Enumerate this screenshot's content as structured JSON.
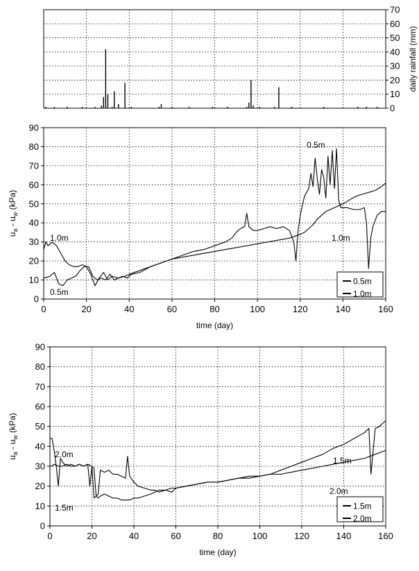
{
  "chart_data": [
    {
      "type": "bar",
      "ylabel": "daily rainfall (mm)",
      "xlim": [
        0,
        160
      ],
      "ylim": [
        0,
        70
      ],
      "yticks": [
        0,
        10,
        20,
        30,
        40,
        50,
        60,
        70
      ],
      "x_gridlines": [
        0,
        20,
        40,
        60,
        80,
        100,
        120,
        140,
        160
      ],
      "y_axis_side": "right",
      "grid": true,
      "x": [
        1,
        5,
        11,
        18,
        24,
        27,
        28,
        29,
        30,
        32,
        33,
        35,
        38,
        41,
        54,
        55,
        60,
        68,
        79,
        86,
        95,
        96,
        97,
        98,
        101,
        108,
        110,
        116,
        131,
        147,
        151,
        156
      ],
      "values": [
        1,
        1,
        1,
        1,
        1,
        2,
        8,
        42,
        10,
        1,
        12,
        3,
        18,
        1,
        1,
        3,
        1,
        1,
        1,
        1,
        1,
        4,
        20,
        2,
        1,
        1,
        15,
        1,
        1,
        1,
        1,
        1
      ]
    },
    {
      "type": "line",
      "xlabel": "time (day)",
      "ylabel": "u_a - u_w (kPa)",
      "ylabel_main": "u",
      "ylabel_sub1": "a",
      "ylabel_mid": " - u",
      "ylabel_sub2": "w",
      "ylabel_unit": " (kPa)",
      "xlim": [
        0,
        160
      ],
      "ylim": [
        0,
        90
      ],
      "xticks": [
        0,
        20,
        40,
        60,
        80,
        100,
        120,
        140,
        160
      ],
      "yticks": [
        0,
        10,
        20,
        30,
        40,
        50,
        60,
        70,
        80,
        90
      ],
      "grid": true,
      "legend_position": "bottom-right",
      "series": [
        {
          "name": "0.5m",
          "x": [
            0,
            3,
            5,
            7,
            9,
            11,
            13,
            15,
            17,
            19,
            21,
            23,
            25,
            27,
            29,
            31,
            33,
            35,
            37,
            39,
            41,
            45,
            50,
            55,
            60,
            65,
            70,
            75,
            80,
            85,
            88,
            90,
            92,
            94,
            95,
            96,
            98,
            100,
            103,
            106,
            109,
            112,
            115,
            117,
            118,
            119,
            120,
            122,
            124,
            125,
            126,
            127,
            128,
            129,
            130,
            131,
            132,
            133,
            134,
            135,
            136,
            137,
            138,
            139,
            140,
            142,
            145,
            148,
            150,
            151,
            152,
            153,
            154,
            156,
            158,
            160
          ],
          "y": [
            11,
            12,
            14,
            8,
            7,
            10,
            11,
            12,
            15,
            17,
            17,
            12,
            10,
            11,
            10,
            13,
            10,
            11,
            12,
            11,
            13,
            14,
            17,
            19,
            21,
            23,
            25,
            26,
            28,
            30,
            32,
            35,
            37,
            38,
            45,
            38,
            36,
            36,
            37,
            38,
            37,
            38,
            36,
            30,
            20,
            36,
            44,
            54,
            58,
            66,
            59,
            74,
            63,
            55,
            68,
            64,
            53,
            75,
            60,
            78,
            58,
            79,
            52,
            48,
            48,
            48,
            47,
            47,
            48,
            40,
            16,
            32,
            38,
            44,
            46,
            46
          ],
          "label": "0.5m"
        },
        {
          "name": "1.0m",
          "x": [
            0,
            1,
            2,
            4,
            6,
            8,
            10,
            12,
            14,
            16,
            18,
            20,
            22,
            24,
            26,
            28,
            30,
            32,
            35,
            38,
            40,
            45,
            50,
            55,
            60,
            65,
            70,
            75,
            80,
            85,
            90,
            95,
            100,
            105,
            110,
            115,
            120,
            122,
            124,
            126,
            128,
            130,
            132,
            134,
            136,
            138,
            140,
            143,
            146,
            149,
            152,
            155,
            158,
            160
          ],
          "y": [
            26,
            30,
            28,
            30,
            28,
            24,
            20,
            18,
            17,
            17,
            18,
            17,
            13,
            7,
            11,
            14,
            10,
            12,
            11,
            12,
            13,
            15,
            17,
            19,
            21,
            22,
            23,
            24,
            25,
            26,
            27,
            28,
            29,
            30,
            31,
            32,
            34,
            35,
            37,
            39,
            42,
            44,
            46,
            47,
            48,
            49,
            50,
            52,
            54,
            55,
            56,
            57,
            59,
            61
          ],
          "label": "1.0m"
        }
      ],
      "annotations": [
        "1.0m",
        "0.5m",
        "0.5m",
        "1.0m"
      ]
    },
    {
      "type": "line",
      "xlabel": "time (day)",
      "ylabel": "u_a - u_w (kPa)",
      "ylabel_main": "u",
      "ylabel_sub1": "a",
      "ylabel_mid": " - u",
      "ylabel_sub2": "w",
      "ylabel_unit": " (kPa)",
      "xlim": [
        0,
        160
      ],
      "ylim": [
        0,
        90
      ],
      "xticks": [
        0,
        20,
        40,
        60,
        80,
        100,
        120,
        140,
        160
      ],
      "yticks": [
        0,
        10,
        20,
        30,
        40,
        50,
        60,
        70,
        80,
        90
      ],
      "grid": true,
      "legend_position": "bottom-right",
      "series": [
        {
          "name": "1.5m",
          "x": [
            0,
            1,
            2,
            4,
            6,
            8,
            10,
            12,
            14,
            16,
            18,
            19,
            20,
            21,
            22,
            23,
            24,
            26,
            28,
            30,
            32,
            34,
            36,
            37,
            38,
            40,
            42,
            45,
            48,
            50,
            52,
            55,
            58,
            60,
            65,
            70,
            75,
            80,
            85,
            90,
            95,
            100,
            105,
            110,
            115,
            120,
            125,
            130,
            135,
            140,
            145,
            150,
            152,
            153,
            155,
            157,
            160
          ],
          "y": [
            30,
            30,
            31,
            30,
            30,
            31,
            30,
            30,
            31,
            30,
            31,
            20,
            30,
            29,
            15,
            16,
            28,
            27,
            28,
            26,
            26,
            25,
            24,
            35,
            25,
            22,
            20,
            19,
            18,
            18,
            17,
            18,
            17,
            19,
            20,
            21,
            22,
            22,
            23,
            24,
            24,
            25,
            26,
            28,
            30,
            32,
            34,
            36,
            39,
            41,
            44,
            47,
            49,
            26,
            49,
            50,
            53
          ],
          "label": "1.5m"
        },
        {
          "name": "2.0m",
          "x": [
            0,
            1,
            2,
            3,
            4,
            5,
            6,
            8,
            10,
            12,
            14,
            16,
            18,
            20,
            21,
            22,
            23,
            24,
            26,
            28,
            30,
            32,
            34,
            36,
            38,
            40,
            42,
            45,
            48,
            50,
            52,
            55,
            58,
            60,
            65,
            70,
            75,
            80,
            85,
            90,
            95,
            100,
            105,
            110,
            115,
            120,
            125,
            130,
            135,
            140,
            145,
            150,
            155,
            160
          ],
          "y": [
            44,
            44,
            38,
            30,
            20,
            34,
            32,
            30,
            31,
            30,
            31,
            30,
            31,
            30,
            14,
            15,
            14,
            15,
            16,
            15,
            14,
            14,
            13,
            13,
            13,
            14,
            14,
            15,
            16,
            17,
            18,
            18,
            19,
            19,
            20,
            21,
            22,
            22,
            23,
            24,
            25,
            25,
            26,
            26,
            27,
            28,
            29,
            30,
            31,
            32,
            33,
            34,
            36,
            38
          ],
          "label": "2.0m"
        }
      ],
      "annotations": [
        "2.0m",
        "1.5m",
        "1.5m",
        "2.0m"
      ]
    }
  ]
}
